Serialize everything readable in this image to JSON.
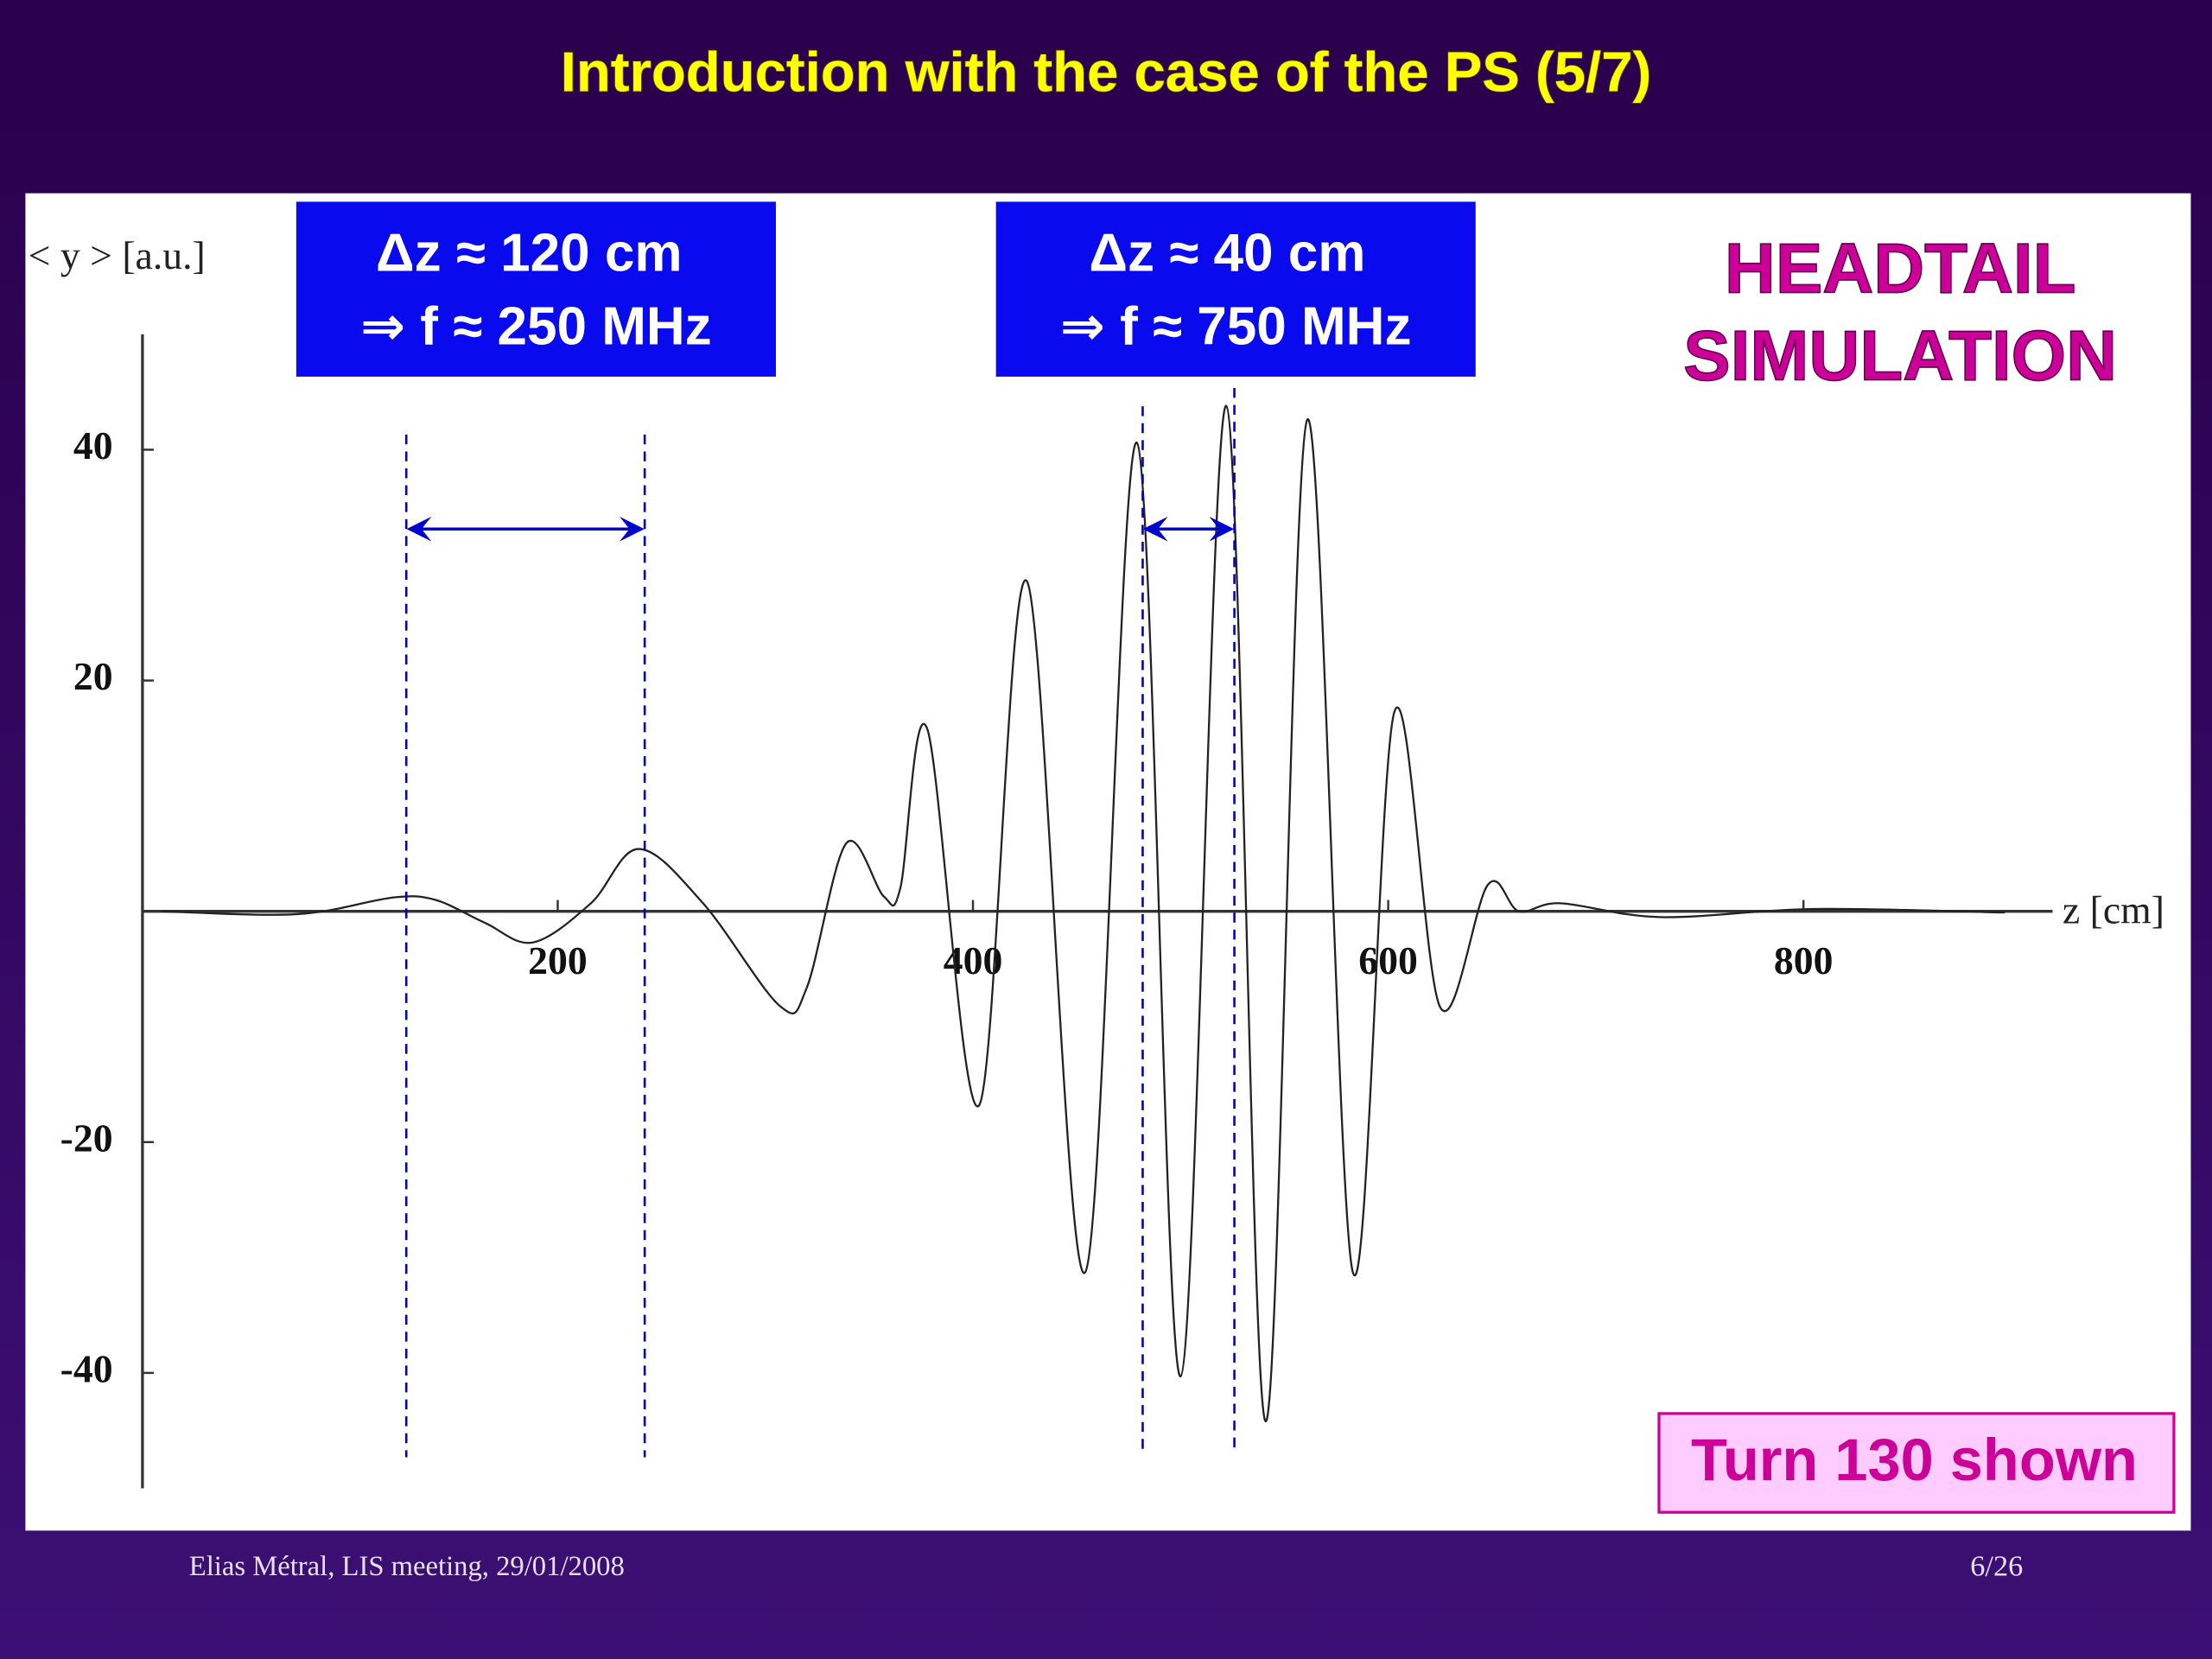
{
  "slide": {
    "title": "Introduction with the case of the PS (5/7)",
    "box_left": [
      "Δz ≈ 120 cm",
      "⇒ f ≈ 250 MHz"
    ],
    "box_right": [
      "Δz ≈ 40 cm",
      "⇒ f ≈ 750 MHz"
    ],
    "headtail": [
      "HEADTAIL",
      "SIMULATION"
    ],
    "turn": "Turn 130 shown",
    "footer_left": "Elias Métral, LIS meeting, 29/01/2008",
    "footer_right": "6/26"
  },
  "chart_data": {
    "type": "line",
    "x_label": "z [cm]",
    "y_label": "< y > [a.u.]",
    "x": [
      9,
      60,
      87,
      121,
      141,
      165,
      188,
      216,
      239,
      270,
      307,
      320,
      339,
      357,
      365,
      378,
      403,
      426,
      454,
      479,
      500,
      522,
      541,
      561,
      583,
      603,
      625,
      648,
      663,
      683,
      731,
      805,
      897
    ],
    "values": [
      0,
      -0.3,
      0,
      1.2,
      1,
      -1,
      -2.7,
      0.7,
      5.4,
      0.7,
      -8.2,
      -6.6,
      5.9,
      1.3,
      2,
      15.8,
      -16.8,
      28.6,
      -31.3,
      40.6,
      -40.3,
      43.8,
      -44.2,
      42.6,
      -31.3,
      17.3,
      -8.3,
      2.3,
      0,
      0.7,
      -0.5,
      0.2,
      -0.1
    ],
    "color": "#222222",
    "xlim": [
      0,
      920
    ],
    "ylim": [
      -50,
      50
    ],
    "xticks": [
      200,
      400,
      600,
      800
    ],
    "yticks": [
      -40,
      -20,
      20,
      40
    ]
  }
}
